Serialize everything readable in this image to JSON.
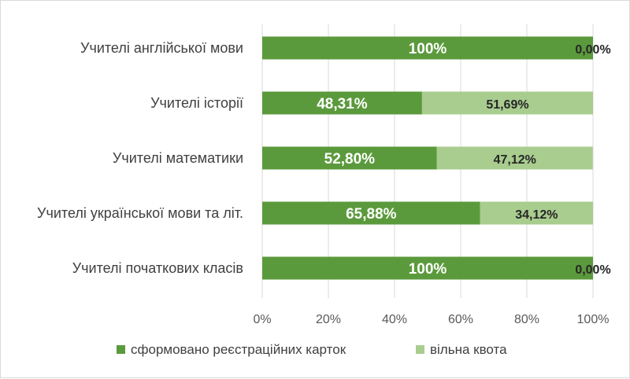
{
  "chart_data": {
    "type": "bar",
    "orientation": "horizontal",
    "stacked": "percent",
    "categories": [
      "Учителі англійської мови",
      "Учителі історії",
      "Учителі математики",
      "Учителі української мови та літ.",
      "Учителі початкових класів"
    ],
    "series": [
      {
        "name": "сформовано реєстраційних карток",
        "color": "#5b9a3c",
        "values": [
          100,
          48.31,
          52.8,
          65.88,
          100
        ],
        "labels": [
          "100%",
          "48,31%",
          "52,80%",
          "65,88%",
          "100%"
        ]
      },
      {
        "name": "вільна квота",
        "color": "#a9cc8f",
        "values": [
          0,
          51.69,
          47.12,
          34.12,
          0
        ],
        "labels": [
          "0,00%",
          "51,69%",
          "47,12%",
          "34,12%",
          "0,00%"
        ]
      }
    ],
    "xlim": [
      0,
      100
    ],
    "x_ticks": [
      "0%",
      "20%",
      "40%",
      "60%",
      "80%",
      "100%"
    ],
    "grid": "vertical",
    "legend_position": "bottom",
    "title": "",
    "xlabel": "",
    "ylabel": ""
  }
}
